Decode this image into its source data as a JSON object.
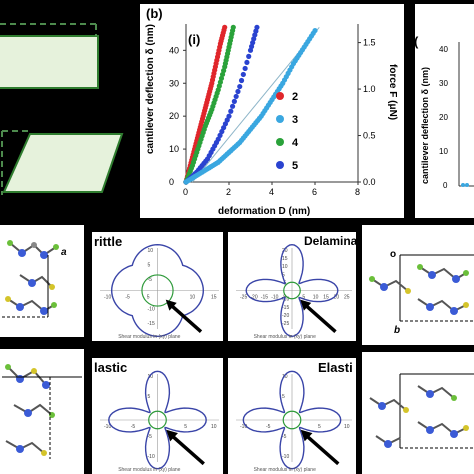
{
  "panel_b": {
    "tag": "(b)",
    "sub": "(i)",
    "left_axis_label": "cantilever deflection δ (nm)",
    "right_axis_label": "force F (μN)",
    "x_axis_label": "deformation D (nm)",
    "x_ticks": [
      "0",
      "2",
      "4",
      "6",
      "8"
    ],
    "y_ticks": [
      "0",
      "10",
      "20",
      "30",
      "40"
    ],
    "f_ticks": [
      "0.0",
      "0.5",
      "1.0",
      "1.5"
    ],
    "legend": [
      {
        "label": "2",
        "color": "#e0262b"
      },
      {
        "label": "3",
        "color": "#3aa7e0"
      },
      {
        "label": "4",
        "color": "#2aa23a"
      },
      {
        "label": "5",
        "color": "#2a43d0"
      }
    ],
    "right_partial_tag": "(",
    "right_partial_axis": "cantilever deflection δ (nm)",
    "right_partial_ticks": [
      "40",
      "30",
      "20",
      "10",
      "0"
    ]
  },
  "chart_data": {
    "type": "scatter",
    "xlabel": "deformation D (nm)",
    "ylabel": "cantilever deflection δ (nm)",
    "xlim": [
      0,
      8
    ],
    "ylim": [
      0,
      48
    ],
    "series": [
      {
        "name": "2",
        "color": "#e0262b",
        "x": [
          0,
          0.2,
          0.4,
          0.6,
          0.8,
          1.0,
          1.2,
          1.4,
          1.6,
          1.8
        ],
        "y": [
          0,
          5,
          10,
          15,
          20,
          25,
          30,
          36,
          42,
          47
        ]
      },
      {
        "name": "4",
        "color": "#2aa23a",
        "x": [
          0,
          0.3,
          0.6,
          0.9,
          1.2,
          1.5,
          1.8,
          2.0,
          2.2
        ],
        "y": [
          0,
          5,
          11,
          17,
          22,
          28,
          35,
          41,
          47
        ]
      },
      {
        "name": "5",
        "color": "#2a43d0",
        "x": [
          0,
          0.5,
          1.0,
          1.5,
          2.0,
          2.5,
          3.0,
          3.3
        ],
        "y": [
          0,
          3,
          7,
          13,
          20,
          29,
          40,
          47
        ]
      },
      {
        "name": "3",
        "color": "#3aa7e0",
        "x": [
          0,
          0.5,
          1.0,
          1.5,
          2.0,
          2.5,
          3.0,
          3.5,
          4.0,
          4.5,
          5.0,
          5.5,
          6.0
        ],
        "y": [
          0,
          2,
          4,
          6,
          9,
          12,
          16,
          20,
          25,
          30,
          36,
          41,
          46
        ]
      }
    ]
  },
  "polar_panels": {
    "brittle_title": "rittle",
    "delaminating_title": "Delaminating",
    "elastic_left_title": "lastic",
    "elastic_right_title": "Elasti",
    "caption": "Shear modulus in (xy) plane",
    "ticks_a": [
      "10",
      "5",
      "-5",
      "-10",
      "-15"
    ],
    "ticks_a_x": [
      "-10",
      "-5",
      "5",
      "10",
      "15"
    ],
    "ticks_b": [
      "20",
      "15",
      "10",
      "5",
      "-5",
      "-10",
      "-15",
      "-20",
      "-25"
    ],
    "ticks_b_x": [
      "-25",
      "-20",
      "-15",
      "-10",
      "-5",
      "5",
      "10",
      "15",
      "20",
      "25"
    ],
    "ticks_c": [
      "10",
      "5",
      "-5",
      "-10"
    ],
    "ticks_c_x": [
      "-10",
      "-5",
      "5",
      "10"
    ],
    "ticks_d": [
      "10",
      "5",
      "-5",
      "-10"
    ],
    "ticks_d_x": [
      "-10",
      "-5",
      "5",
      "10"
    ],
    "curve_color": "#3a45a8",
    "circle_color": "#2e9a3a"
  },
  "crystal": {
    "axis_a": "a",
    "axis_o": "o",
    "axis_b": "b"
  },
  "shapes": {
    "fill": "#e6f2dc",
    "stroke": "#2f7d2f"
  }
}
